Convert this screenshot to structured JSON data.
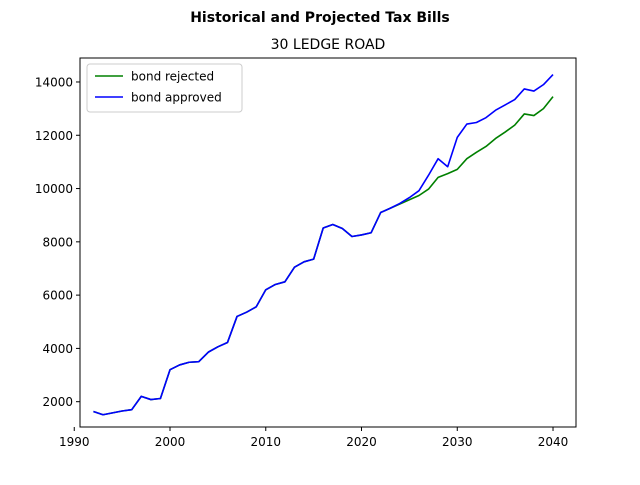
{
  "chart_data": {
    "type": "line",
    "title": "Historical and Projected Tax Bills",
    "subtitle": "30 LEDGE ROAD",
    "xlabel": "",
    "ylabel": "",
    "xlim": [
      1990.6,
      2042.4
    ],
    "ylim": [
      1050,
      14900
    ],
    "x_ticks": [
      1990,
      2000,
      2010,
      2020,
      2030,
      2040
    ],
    "y_ticks": [
      2000,
      4000,
      6000,
      8000,
      10000,
      12000,
      14000
    ],
    "grid": false,
    "legend_position": "upper left",
    "series": [
      {
        "name": "bond rejected",
        "color": "#008000",
        "x": [
          1992,
          1993,
          1994,
          1995,
          1996,
          1997,
          1998,
          1999,
          2000,
          2001,
          2002,
          2003,
          2004,
          2005,
          2006,
          2007,
          2008,
          2009,
          2010,
          2011,
          2012,
          2013,
          2014,
          2015,
          2016,
          2017,
          2018,
          2019,
          2020,
          2021,
          2022,
          2023,
          2024,
          2025,
          2026,
          2027,
          2028,
          2029,
          2030,
          2031,
          2032,
          2033,
          2034,
          2035,
          2036,
          2037,
          2038,
          2039,
          2040
        ],
        "values": [
          1630,
          1510,
          1580,
          1650,
          1700,
          2200,
          2080,
          2120,
          3200,
          3380,
          3480,
          3500,
          3860,
          4060,
          4220,
          5200,
          5360,
          5560,
          6200,
          6400,
          6500,
          7050,
          7250,
          7350,
          8520,
          8650,
          8500,
          8200,
          8260,
          8340,
          9100,
          9260,
          9420,
          9580,
          9740,
          9980,
          10420,
          10560,
          10720,
          11120,
          11360,
          11580,
          11880,
          12120,
          12380,
          12800,
          12740,
          13000,
          13450
        ]
      },
      {
        "name": "bond approved",
        "color": "#0000ff",
        "x": [
          1992,
          1993,
          1994,
          1995,
          1996,
          1997,
          1998,
          1999,
          2000,
          2001,
          2002,
          2003,
          2004,
          2005,
          2006,
          2007,
          2008,
          2009,
          2010,
          2011,
          2012,
          2013,
          2014,
          2015,
          2016,
          2017,
          2018,
          2019,
          2020,
          2021,
          2022,
          2023,
          2024,
          2025,
          2026,
          2027,
          2028,
          2029,
          2030,
          2031,
          2032,
          2033,
          2034,
          2035,
          2036,
          2037,
          2038,
          2039,
          2040
        ],
        "values": [
          1630,
          1510,
          1580,
          1650,
          1700,
          2200,
          2080,
          2120,
          3200,
          3380,
          3480,
          3500,
          3860,
          4060,
          4220,
          5200,
          5360,
          5560,
          6200,
          6400,
          6500,
          7050,
          7250,
          7350,
          8520,
          8650,
          8500,
          8200,
          8260,
          8340,
          9100,
          9260,
          9440,
          9660,
          9920,
          10500,
          11120,
          10820,
          11920,
          12420,
          12480,
          12660,
          12940,
          13140,
          13340,
          13740,
          13660,
          13900,
          14280
        ]
      }
    ]
  }
}
